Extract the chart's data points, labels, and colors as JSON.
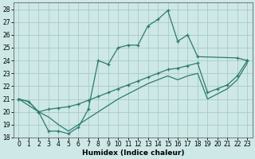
{
  "xlabel": "Humidex (Indice chaleur)",
  "xlim": [
    -0.5,
    23.5
  ],
  "ylim": [
    18,
    28.5
  ],
  "xticks": [
    0,
    1,
    2,
    3,
    4,
    5,
    6,
    7,
    8,
    9,
    10,
    11,
    12,
    13,
    14,
    15,
    16,
    17,
    18,
    19,
    20,
    21,
    22,
    23
  ],
  "yticks": [
    18,
    19,
    20,
    21,
    22,
    23,
    24,
    25,
    26,
    27,
    28
  ],
  "background_color": "#cde8e6",
  "grid_color": "#a8cac8",
  "line_color": "#2d7b6f",
  "line1_x": [
    0,
    1,
    2,
    3,
    4,
    5,
    6,
    7,
    8,
    9,
    10,
    11,
    12,
    13,
    14,
    15,
    16,
    17,
    18,
    22,
    23
  ],
  "line1_y": [
    21.0,
    20.8,
    20.0,
    18.5,
    18.5,
    18.3,
    18.8,
    20.2,
    24.0,
    23.7,
    25.0,
    25.2,
    25.2,
    26.7,
    27.2,
    27.9,
    25.5,
    26.0,
    24.3,
    24.2,
    24.0
  ],
  "line2_x": [
    0,
    2,
    3,
    4,
    5,
    6,
    7,
    8,
    9,
    10,
    11,
    12,
    13,
    14,
    15,
    16,
    17,
    18,
    19,
    20,
    21,
    22,
    23
  ],
  "line2_y": [
    21.0,
    20.0,
    20.2,
    20.3,
    20.4,
    20.6,
    20.9,
    21.2,
    21.5,
    21.8,
    22.1,
    22.4,
    22.7,
    23.0,
    23.3,
    23.4,
    23.6,
    23.8,
    21.5,
    21.8,
    22.1,
    22.8,
    24.0
  ],
  "line3_x": [
    0,
    1,
    2,
    3,
    4,
    5,
    6,
    7,
    8,
    9,
    10,
    11,
    12,
    13,
    14,
    15,
    16,
    17,
    18,
    19,
    20,
    21,
    22,
    23
  ],
  "line3_y": [
    21.0,
    20.8,
    20.0,
    19.6,
    19.0,
    18.5,
    19.0,
    19.5,
    20.0,
    20.5,
    21.0,
    21.4,
    21.8,
    22.2,
    22.5,
    22.8,
    22.5,
    22.8,
    23.0,
    21.0,
    21.4,
    21.8,
    22.5,
    23.8
  ]
}
